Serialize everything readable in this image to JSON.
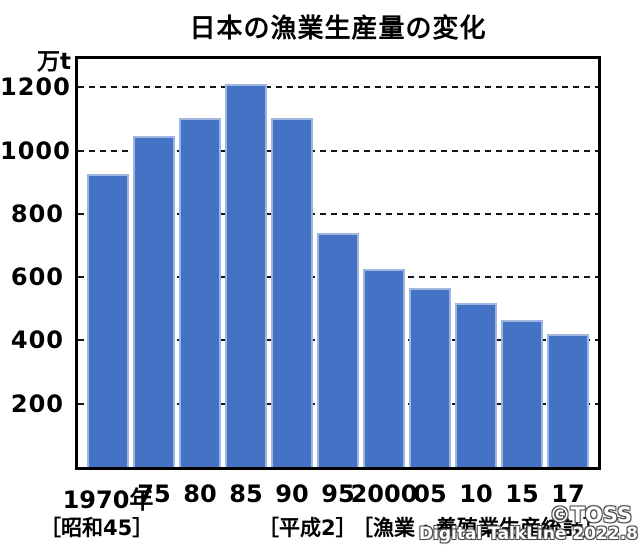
{
  "title": "日本の漁業生産量の変化",
  "chart_data": {
    "type": "bar",
    "title": "日本の漁業生産量の変化",
    "xlabel": "",
    "ylabel": "万t",
    "categories": [
      "1970年",
      "75",
      "80",
      "85",
      "90",
      "95",
      "2000",
      "05",
      "10",
      "15",
      "17"
    ],
    "values": [
      925,
      1045,
      1105,
      1210,
      1105,
      740,
      625,
      565,
      520,
      465,
      420
    ],
    "yticks": [
      200,
      400,
      600,
      800,
      1000,
      1200
    ],
    "ylim": [
      0,
      1290
    ],
    "grid": "horizontal-dashed",
    "legend": "none",
    "bar_color": "#4472C4",
    "bar_border_color": "#9FB4DE",
    "axis_color": "#000000"
  },
  "annotations": {
    "showa": "［昭和45］",
    "heisei": "［平成2］",
    "source": "［漁業・養殖業生産統計］"
  },
  "watermark": {
    "line1": "©TOSS",
    "line2": "Digital TalkLine 2022.8"
  },
  "colors": {
    "background": "#FFFFFF",
    "text": "#000000",
    "bar": "#4472C4"
  }
}
